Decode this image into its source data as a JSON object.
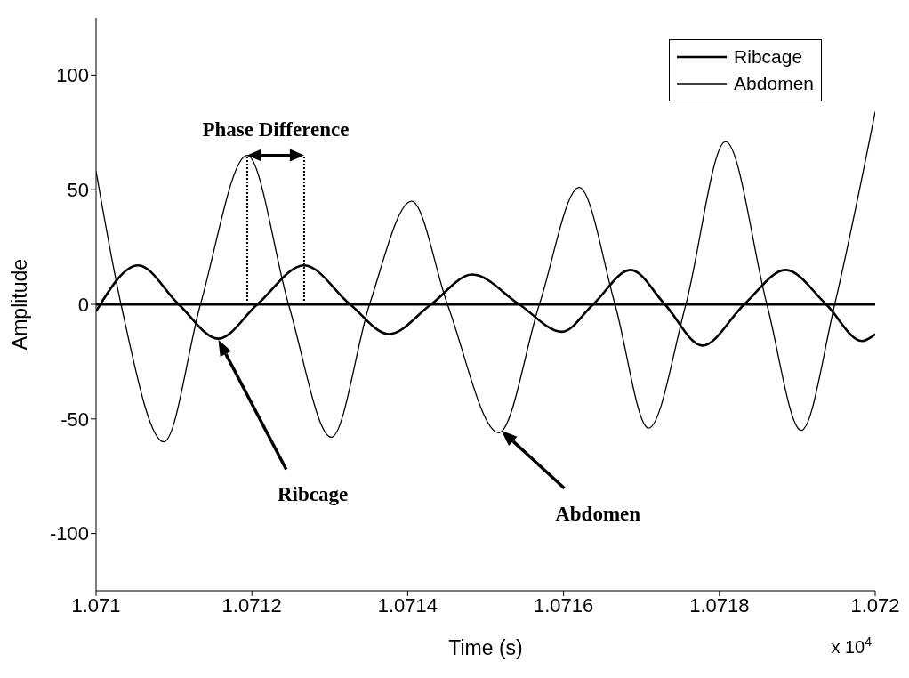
{
  "chart_data": {
    "type": "line",
    "xlabel": "Time (s)",
    "ylabel": "Amplitude",
    "xlim": [
      1.071,
      1.072
    ],
    "ylim": [
      -125,
      125
    ],
    "xticks": [
      1.071,
      1.0712,
      1.0714,
      1.0716,
      1.0718,
      1.072
    ],
    "yticks": [
      -100,
      -50,
      0,
      50,
      100
    ],
    "grid": false,
    "legend": "top right",
    "marker": "none",
    "line_style": "solid",
    "ref_lines": [
      {
        "axis": "y",
        "value": 0,
        "color": "#000000"
      }
    ],
    "series": [
      {
        "name": "Ribcage",
        "color": "#000000",
        "x": [
          1.071,
          1.071054,
          1.071106,
          1.071157,
          1.071207,
          1.071267,
          1.071326,
          1.071376,
          1.07143,
          1.071483,
          1.071543,
          1.071598,
          1.071638,
          1.071686,
          1.07173,
          1.071778,
          1.071832,
          1.071885,
          1.071937,
          1.071983,
          1.072
        ],
        "values": [
          -3,
          17,
          0,
          -15,
          0,
          17,
          0,
          -13,
          0,
          13,
          0,
          -12,
          0,
          15,
          0,
          -18,
          0,
          15,
          0,
          -16,
          -13
        ]
      },
      {
        "name": "Abdomen",
        "color": "#000000",
        "x": [
          1.071,
          1.071032,
          1.071087,
          1.071134,
          1.071194,
          1.071247,
          1.071302,
          1.071351,
          1.071405,
          1.071451,
          1.071517,
          1.071569,
          1.07162,
          1.071666,
          1.071709,
          1.071757,
          1.071808,
          1.071861,
          1.071905,
          1.071948,
          1.072
        ],
        "values": [
          58,
          0,
          -60,
          0,
          65,
          0,
          -58,
          0,
          45,
          0,
          -56,
          0,
          51,
          0,
          -54,
          0,
          71,
          0,
          -55,
          0,
          84
        ]
      }
    ],
    "annotations": [
      {
        "text": "Phase Difference",
        "x": 1.071194,
        "y": 65
      },
      "Ribcage",
      "Abdomen",
      "x 10$^{4}$"
    ]
  }
}
